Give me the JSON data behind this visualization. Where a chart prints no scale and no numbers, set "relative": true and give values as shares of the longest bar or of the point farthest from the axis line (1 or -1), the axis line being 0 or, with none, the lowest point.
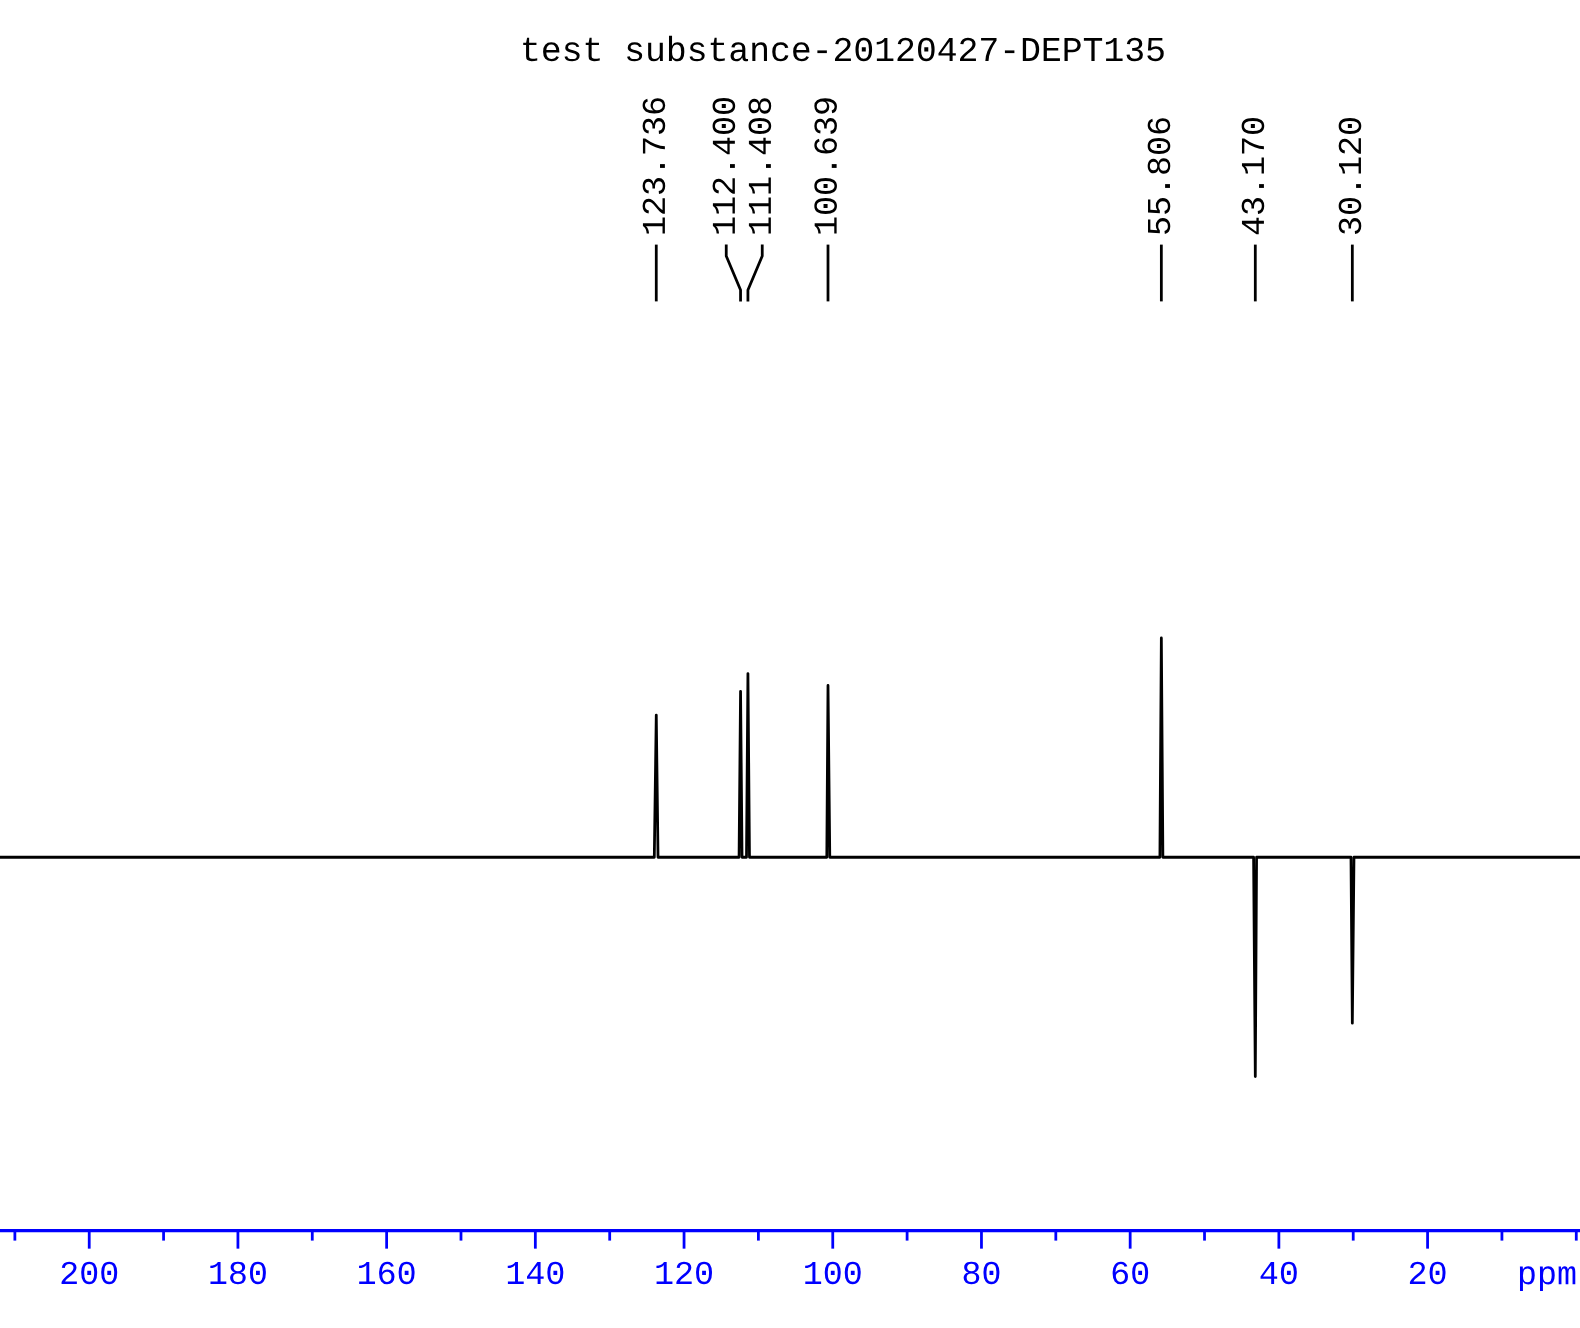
{
  "chart_data": {
    "type": "line",
    "title": "test substance-20120427-DEPT135",
    "xlabel": "ppm",
    "relative": true,
    "color": "#000000",
    "x": [
      212,
      124.0,
      123.736,
      123.5,
      112.6,
      112.4,
      112.2,
      111.6,
      111.408,
      111.2,
      100.8,
      100.639,
      100.4,
      56.0,
      55.806,
      55.6,
      43.4,
      43.17,
      43.0,
      30.3,
      30.12,
      29.9,
      -0.5
    ],
    "values": [
      0.63,
      0.63,
      0.87,
      0.63,
      0.63,
      0.91,
      0.63,
      0.63,
      0.94,
      0.63,
      0.63,
      0.92,
      0.63,
      0.63,
      1,
      0.63,
      0.63,
      0.26,
      0.63,
      0.63,
      0.35,
      0.63,
      0.63
    ],
    "xlim": [
      212,
      -0.5
    ],
    "xticks": [
      {
        "value": 210,
        "label": null
      },
      200,
      {
        "value": 190,
        "label": null
      },
      180,
      {
        "value": 170,
        "label": null
      },
      160,
      {
        "value": 150,
        "label": null
      },
      140,
      {
        "value": 130,
        "label": null
      },
      120,
      {
        "value": 110,
        "label": null
      },
      100,
      {
        "value": 90,
        "label": null
      },
      80,
      {
        "value": 70,
        "label": null
      },
      60,
      {
        "value": 50,
        "label": null
      },
      40,
      {
        "value": 30,
        "label": null
      },
      20,
      {
        "value": 10,
        "label": null
      },
      {
        "value": 0,
        "label": null
      }
    ],
    "annotations": [
      {
        "text": "123.736",
        "x": 123.736
      },
      {
        "text": "112.400",
        "x": 112.4
      },
      {
        "text": "111.408",
        "x": 111.408
      },
      {
        "text": "100.639",
        "x": 100.639
      },
      {
        "text": "55.806",
        "x": 55.806
      },
      {
        "text": "43.170",
        "x": 43.17
      },
      {
        "text": "30.120",
        "x": 30.12
      }
    ]
  }
}
